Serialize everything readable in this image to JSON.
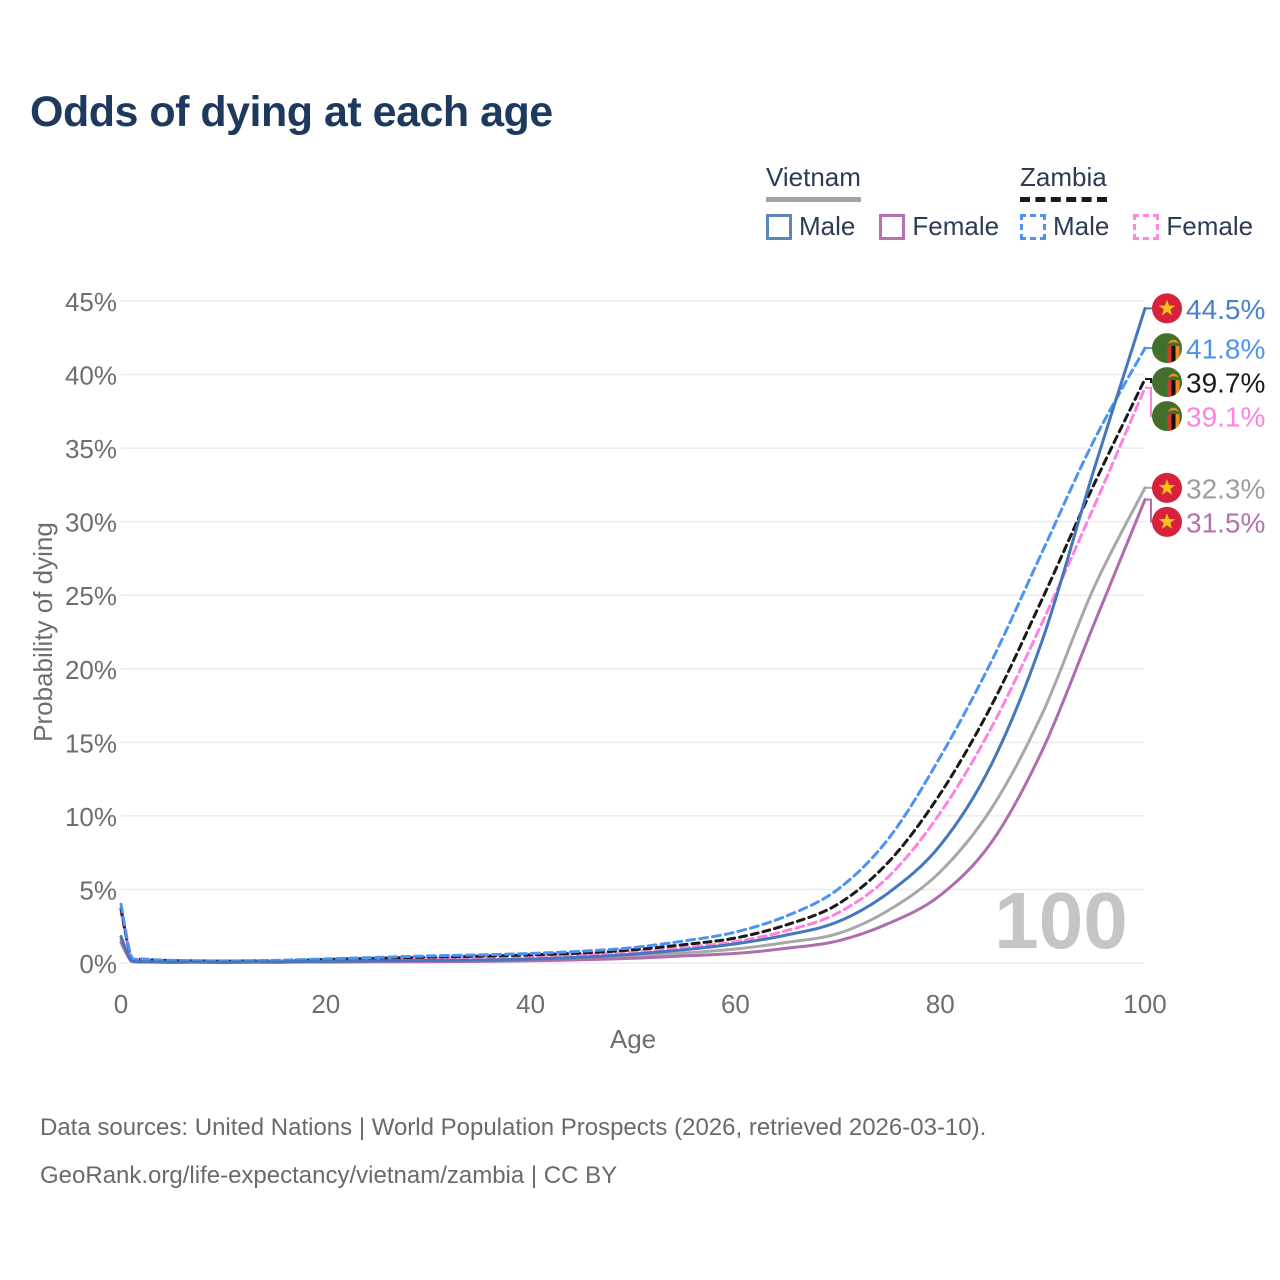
{
  "title": "Odds of dying at each age",
  "legend": {
    "groups": [
      {
        "country": "Vietnam",
        "line_style": "solid",
        "line_color": "#a3a3a3",
        "items": [
          {
            "label": "Male",
            "color": "#5b87bb",
            "style": "solid"
          },
          {
            "label": "Female",
            "color": "#b473ae",
            "style": "solid"
          }
        ]
      },
      {
        "country": "Zambia",
        "line_style": "dashed",
        "line_color": "#1a1a1a",
        "items": [
          {
            "label": "Male",
            "color": "#4d94f0",
            "style": "dashed"
          },
          {
            "label": "Female",
            "color": "#ff85e0",
            "style": "dashed"
          }
        ]
      }
    ]
  },
  "watermark": "100",
  "footer": {
    "line1": "Data sources: United Nations | World Population Prospects (2026, retrieved 2026-03-10).",
    "line2": "GeoRank.org/life-expectancy/vietnam/zambia | CC BY"
  },
  "chart_data": {
    "type": "line",
    "title": "Odds of dying at each age",
    "xlabel": "Age",
    "ylabel": "Probability of dying",
    "xlim": [
      0,
      100
    ],
    "ylim": [
      0,
      45
    ],
    "x_ticks": [
      0,
      20,
      40,
      60,
      80,
      100
    ],
    "y_ticks": [
      0,
      5,
      10,
      15,
      20,
      25,
      30,
      35,
      40,
      45
    ],
    "y_tick_suffix": "%",
    "grid": "horizontal",
    "legend_position": "top-right",
    "ages": [
      0,
      1,
      2,
      5,
      10,
      15,
      20,
      25,
      30,
      35,
      40,
      45,
      50,
      55,
      60,
      65,
      70,
      75,
      80,
      85,
      90,
      95,
      100
    ],
    "series": [
      {
        "name": "Vietnam Male",
        "country": "Vietnam",
        "sex": "Male",
        "flag": "vietnam",
        "color": "#4577bb",
        "dash": null,
        "end_label": "44.5%",
        "label_color": "#4a80cc",
        "values": [
          1.8,
          0.15,
          0.08,
          0.05,
          0.04,
          0.07,
          0.12,
          0.15,
          0.17,
          0.2,
          0.27,
          0.4,
          0.6,
          0.9,
          1.3,
          1.9,
          2.8,
          4.8,
          8.0,
          13.5,
          22.0,
          33.5,
          44.5
        ]
      },
      {
        "name": "Vietnam Female",
        "country": "Vietnam",
        "sex": "Female",
        "flag": "vietnam",
        "color": "#b06dad",
        "dash": null,
        "end_label": "31.5%",
        "label_color": "#b273af",
        "values": [
          1.4,
          0.12,
          0.06,
          0.04,
          0.03,
          0.04,
          0.06,
          0.08,
          0.09,
          0.11,
          0.15,
          0.22,
          0.32,
          0.48,
          0.65,
          1.0,
          1.5,
          2.7,
          4.6,
          8.2,
          14.5,
          23.0,
          31.5
        ]
      },
      {
        "name": "Vietnam Both sexes",
        "country": "Vietnam",
        "sex": "Both sexes",
        "flag": "vietnam",
        "color": "#a8a8a8",
        "dash": null,
        "end_label": "32.3%",
        "label_color": "#9e9e9e",
        "values": [
          1.6,
          0.14,
          0.07,
          0.045,
          0.035,
          0.055,
          0.09,
          0.11,
          0.13,
          0.16,
          0.21,
          0.31,
          0.46,
          0.68,
          0.95,
          1.4,
          2.0,
          3.6,
          6.2,
          10.5,
          17.0,
          25.5,
          32.3
        ]
      },
      {
        "name": "Zambia Male",
        "country": "Zambia",
        "sex": "Male",
        "flag": "zambia",
        "color": "#4d94f0",
        "dash": "8 5",
        "end_label": "41.8%",
        "label_color": "#4d94f0",
        "values": [
          4.0,
          0.45,
          0.28,
          0.18,
          0.14,
          0.18,
          0.28,
          0.38,
          0.48,
          0.55,
          0.65,
          0.8,
          1.05,
          1.5,
          2.1,
          3.2,
          5.0,
          8.5,
          14.0,
          20.5,
          28.0,
          35.5,
          41.8
        ]
      },
      {
        "name": "Zambia Female",
        "country": "Zambia",
        "sex": "Female",
        "flag": "zambia",
        "color": "#ff82e0",
        "dash": "8 5",
        "end_label": "39.1%",
        "label_color": "#ff82e0",
        "values": [
          3.5,
          0.4,
          0.25,
          0.15,
          0.12,
          0.14,
          0.2,
          0.26,
          0.32,
          0.38,
          0.46,
          0.58,
          0.76,
          1.05,
          1.45,
          2.2,
          3.4,
          5.9,
          10.2,
          16.0,
          23.2,
          31.0,
          39.1
        ]
      },
      {
        "name": "Zambia Both sexes",
        "country": "Zambia",
        "sex": "Both sexes",
        "flag": "zambia",
        "color": "#1a1a1a",
        "dash": "7 5",
        "end_label": "39.7%",
        "label_color": "#1a1a1a",
        "values": [
          3.7,
          0.42,
          0.26,
          0.16,
          0.13,
          0.16,
          0.24,
          0.32,
          0.4,
          0.46,
          0.55,
          0.68,
          0.9,
          1.25,
          1.7,
          2.6,
          4.0,
          6.9,
          11.5,
          17.5,
          24.8,
          32.5,
          39.7
        ]
      }
    ]
  }
}
